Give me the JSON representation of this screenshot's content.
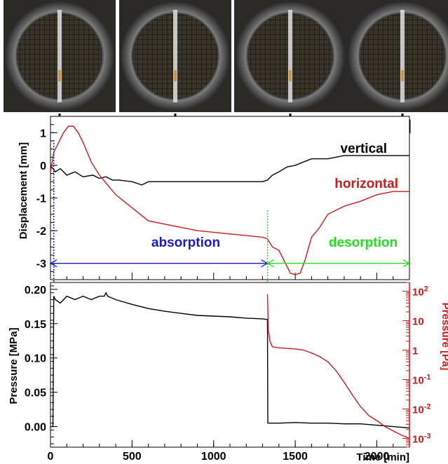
{
  "chart_data": [
    {
      "type": "line",
      "panel": "top",
      "ylabel": "Displacement [mm]",
      "ylim": [
        -3.5,
        1.5
      ],
      "xlim": [
        0,
        2200
      ],
      "y_ticks": [
        "1",
        "0",
        "-1",
        "-2",
        "-3"
      ],
      "grid": false,
      "series": [
        {
          "name": "vertical",
          "color": "#000000",
          "x": [
            0,
            30,
            60,
            100,
            150,
            200,
            260,
            300,
            340,
            380,
            420,
            500,
            560,
            600,
            650,
            700,
            800,
            900,
            1000,
            1100,
            1200,
            1300,
            1330,
            1360,
            1400,
            1450,
            1500,
            1550,
            1600,
            1700,
            1800,
            1900,
            2000,
            2100,
            2200
          ],
          "y": [
            0.0,
            -0.2,
            -0.1,
            -0.3,
            -0.2,
            -0.35,
            -0.3,
            -0.4,
            -0.35,
            -0.45,
            -0.45,
            -0.5,
            -0.6,
            -0.5,
            -0.5,
            -0.5,
            -0.5,
            -0.5,
            -0.5,
            -0.5,
            -0.5,
            -0.5,
            -0.45,
            -0.3,
            -0.2,
            -0.05,
            0.0,
            0.1,
            0.2,
            0.2,
            0.3,
            0.3,
            0.3,
            0.3,
            0.3
          ]
        },
        {
          "name": "horizontal",
          "color": "#cc1b1b",
          "x": [
            0,
            20,
            50,
            80,
            110,
            140,
            170,
            200,
            250,
            300,
            350,
            400,
            450,
            500,
            550,
            600,
            700,
            800,
            900,
            1000,
            1100,
            1200,
            1300,
            1330,
            1360,
            1400,
            1430,
            1470,
            1500,
            1530,
            1560,
            1600,
            1650,
            1700,
            1800,
            1900,
            2000,
            2100,
            2200
          ],
          "y": [
            -0.2,
            0.4,
            0.7,
            1.0,
            1.2,
            1.2,
            1.0,
            0.7,
            0.1,
            -0.3,
            -0.6,
            -0.9,
            -1.1,
            -1.3,
            -1.5,
            -1.7,
            -1.8,
            -1.9,
            -2.0,
            -2.05,
            -2.1,
            -2.15,
            -2.2,
            -2.25,
            -2.5,
            -2.6,
            -2.9,
            -3.3,
            -3.35,
            -3.3,
            -2.9,
            -2.2,
            -1.9,
            -1.5,
            -1.25,
            -1.1,
            -0.9,
            -0.8,
            -0.8
          ]
        }
      ],
      "annotations": [
        {
          "text": "vertical",
          "color": "#000000"
        },
        {
          "text": "horizontal",
          "color": "#cc1b1b"
        },
        {
          "text": "absorption",
          "color": "#1a1acc"
        },
        {
          "text": "desorption",
          "color": "#22dd22"
        }
      ],
      "arrows": [
        {
          "name": "absorption",
          "x_from": 0,
          "x_to": 1330,
          "y": -3.0,
          "color": "#1a1acc"
        },
        {
          "name": "desorption",
          "x_from": 1330,
          "x_to": 2200,
          "y": -3.0,
          "color": "#22dd22"
        }
      ],
      "photo_markers_x": [
        20,
        130,
        1330,
        2200
      ]
    },
    {
      "type": "line",
      "panel": "bottom",
      "xlabel": "Time [min]",
      "ylabel": "Pressure [MPa]",
      "ylabel_right": "Pressure [Pa]",
      "xlim": [
        0,
        2200
      ],
      "ylim": [
        -0.03,
        0.21
      ],
      "x_ticks": [
        "0",
        "500",
        "1000",
        "1500",
        "2000"
      ],
      "y_ticks": [
        "0.00",
        "0.05",
        "0.10",
        "0.15",
        "0.20"
      ],
      "y_right_scale": "log",
      "y_right_lim": [
        0.0005,
        200
      ],
      "y_right_ticks": [
        "10^2",
        "10",
        "1",
        "10^-1",
        "10^-2",
        "10^-3"
      ],
      "series": [
        {
          "name": "Pressure [MPa]",
          "axis": "left",
          "color": "#000000",
          "x": [
            0,
            15,
            20,
            30,
            60,
            100,
            150,
            200,
            250,
            300,
            330,
            340,
            350,
            400,
            500,
            600,
            700,
            800,
            900,
            1000,
            1100,
            1200,
            1300,
            1330,
            1332,
            1340,
            1400,
            1500,
            1600,
            1700,
            1800,
            1900,
            2000,
            2100,
            2200
          ],
          "y": [
            0.0,
            0.0,
            0.19,
            0.185,
            0.18,
            0.19,
            0.185,
            0.19,
            0.185,
            0.19,
            0.19,
            0.195,
            0.19,
            0.185,
            0.178,
            0.172,
            0.168,
            0.165,
            0.162,
            0.161,
            0.16,
            0.158,
            0.157,
            0.156,
            0.005,
            0.005,
            0.005,
            0.006,
            0.005,
            0.005,
            0.004,
            0.004,
            0.002,
            0.0,
            -0.002
          ]
        },
        {
          "name": "Pressure [Pa]",
          "axis": "right",
          "color": "#cc1b1b",
          "x": [
            1330,
            1335,
            1345,
            1360,
            1400,
            1500,
            1550,
            1600,
            1650,
            1700,
            1750,
            1800,
            1850,
            1900,
            1950,
            2000,
            2050,
            2100,
            2150,
            2200
          ],
          "y": [
            80,
            5,
            2.0,
            1.3,
            1.2,
            1.1,
            1.0,
            0.8,
            0.6,
            0.4,
            0.2,
            0.08,
            0.03,
            0.012,
            0.006,
            0.004,
            0.0025,
            0.0018,
            0.0013,
            0.001
          ]
        }
      ]
    }
  ],
  "photos": [
    {
      "name": "photo-1"
    },
    {
      "name": "photo-2"
    },
    {
      "name": "photo-3"
    },
    {
      "name": "photo-4"
    }
  ]
}
